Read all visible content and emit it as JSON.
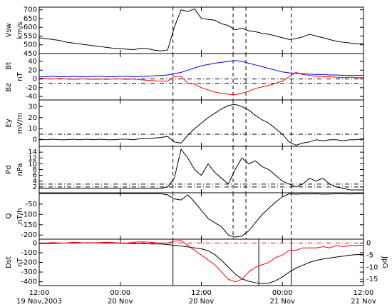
{
  "time_axis": {
    "x": [
      0,
      1,
      2,
      3,
      4,
      5,
      6,
      7,
      8,
      9,
      10,
      11,
      12,
      13,
      14,
      15,
      16,
      17,
      18,
      19,
      20,
      21,
      22,
      23,
      24,
      25,
      26,
      27,
      28,
      29,
      30,
      31,
      32,
      33,
      34,
      35,
      36,
      37,
      38,
      39,
      40,
      41,
      42,
      43,
      44,
      45,
      46,
      47,
      48
    ],
    "xlim": [
      0,
      48
    ],
    "xticks": [
      {
        "value": 0,
        "label": "12:00"
      },
      {
        "value": 12,
        "label": "00:00"
      },
      {
        "value": 24,
        "label": "12:00"
      },
      {
        "value": 36,
        "label": "00:00"
      },
      {
        "value": 48,
        "label": "12:00"
      }
    ],
    "xtick_dates": [
      "19 Nov,2003",
      "20 Nov",
      "20 Nov",
      "21 Nov",
      "21 Nov"
    ],
    "event_lines": [
      19.8,
      28.7,
      30.6,
      37.3
    ]
  },
  "chart_data": [
    {
      "type": "line",
      "ylabel": "Vsw",
      "yunit": "km/s",
      "ylim": [
        450,
        715
      ],
      "yticks": [
        450,
        500,
        550,
        600,
        650,
        700
      ],
      "series": [
        {
          "color": "#000000",
          "values": [
            540,
            535,
            530,
            525,
            515,
            510,
            505,
            500,
            495,
            490,
            485,
            480,
            478,
            475,
            472,
            480,
            478,
            470,
            465,
            470,
            600,
            700,
            690,
            705,
            650,
            645,
            640,
            620,
            610,
            585,
            595,
            580,
            575,
            565,
            560,
            550,
            540,
            530,
            535,
            545,
            560,
            550,
            540,
            530,
            520,
            515,
            510,
            505,
            505
          ]
        }
      ]
    },
    {
      "type": "line",
      "ylim": [
        -48,
        58
      ],
      "yticks": [
        -40,
        -20,
        0,
        20,
        40
      ],
      "yunit": "nT",
      "reference_lines": [
        0,
        -10
      ],
      "series": [
        {
          "name": "Bz",
          "color": "#ff0000",
          "values": [
            2,
            1,
            0,
            1,
            0,
            -1,
            0,
            0,
            -1,
            0,
            -1,
            0,
            0,
            -1,
            0,
            -2,
            -3,
            -4,
            -5,
            -5,
            5,
            6,
            -10,
            -12,
            -20,
            -25,
            -30,
            -33,
            -35,
            -36,
            -33,
            -28,
            -22,
            -18,
            -15,
            -10,
            -5,
            5,
            15,
            10,
            8,
            6,
            5,
            5,
            4,
            3,
            4,
            3,
            3
          ]
        },
        {
          "name": "Bt",
          "color": "#0000ff",
          "values": [
            5,
            5,
            6,
            5,
            5,
            6,
            5,
            5,
            6,
            6,
            5,
            5,
            6,
            6,
            5,
            6,
            6,
            7,
            8,
            9,
            12,
            15,
            20,
            25,
            30,
            33,
            36,
            38,
            40,
            42,
            40,
            36,
            32,
            28,
            24,
            20,
            16,
            14,
            13,
            12,
            11,
            10,
            10,
            9,
            9,
            8,
            8,
            8,
            8
          ]
        }
      ]
    },
    {
      "type": "line",
      "ylabel": "Ey",
      "yunit": "mV/m",
      "ylim": [
        -6,
        36
      ],
      "yticks": [
        0,
        10,
        20,
        30
      ],
      "reference_lines": [
        5
      ],
      "series": [
        {
          "color": "#000000",
          "values": [
            0.5,
            0,
            0.5,
            0,
            0,
            0.5,
            0,
            0.5,
            0,
            0.5,
            0,
            0,
            0.5,
            0.5,
            0,
            1,
            1,
            1.5,
            2,
            3,
            -2,
            -3,
            4,
            10,
            15,
            20,
            24,
            28,
            31,
            32,
            30,
            27,
            22,
            18,
            15,
            10,
            5,
            -2,
            -5,
            -3,
            -2,
            0,
            -1,
            0,
            0,
            -1,
            0,
            0,
            1
          ]
        }
      ]
    },
    {
      "type": "line",
      "ylabel": "Pd",
      "yunit": "nPa",
      "ylim": [
        0,
        16
      ],
      "yticks": [
        2,
        4,
        6,
        8,
        10,
        12,
        14
      ],
      "reference_lines": [
        2,
        3
      ],
      "series": [
        {
          "color": "#000000",
          "values": [
            1.5,
            1.5,
            1.5,
            1.5,
            1.5,
            1.5,
            1.5,
            1.5,
            1.5,
            1.5,
            1.5,
            1.5,
            1.5,
            1.5,
            1.5,
            1.5,
            1.5,
            1.5,
            1.5,
            2,
            5,
            15,
            12,
            8,
            6,
            10,
            7,
            5,
            3,
            8,
            12,
            10,
            11,
            9,
            8,
            6,
            4,
            3,
            2,
            3,
            5,
            4,
            5,
            3,
            2,
            1.5,
            1,
            1,
            1
          ]
        }
      ]
    },
    {
      "type": "line",
      "ylabel": "Q",
      "yunit": "nT/h",
      "ylim": [
        -220,
        5
      ],
      "yticks": [
        -200,
        -150,
        -100,
        -50
      ],
      "series": [
        {
          "color": "#000000",
          "values": [
            0,
            0,
            0,
            0,
            0,
            0,
            0,
            0,
            0,
            0,
            0,
            0,
            0,
            0,
            0,
            0,
            0,
            0,
            0,
            -5,
            -25,
            -30,
            -5,
            -40,
            -80,
            -120,
            -140,
            -160,
            -200,
            -210,
            -205,
            -180,
            -140,
            -100,
            -70,
            -40,
            -15,
            0,
            -2,
            0,
            -1,
            0,
            -2,
            -1,
            0,
            0,
            -1,
            0,
            0
          ]
        }
      ]
    },
    {
      "type": "line",
      "ylabel": "Dst",
      "yunit": "nT",
      "ylim": [
        -440,
        40
      ],
      "yticks": [
        -400,
        -300,
        -200,
        -100,
        0
      ],
      "y2label": "JpG",
      "y2lim": [
        -17.6,
        1.6
      ],
      "y2ticks": [
        -15,
        -10,
        -5,
        0
      ],
      "y2color": "#ff0000",
      "y2_reference_lines": [
        0
      ],
      "event_lines_solid": [
        19.8,
        32.5,
        37.3
      ],
      "series": [
        {
          "color": "#000000",
          "values": [
            -5,
            -5,
            -3,
            -2,
            0,
            0,
            0,
            2,
            2,
            0,
            0,
            0,
            -2,
            -3,
            -5,
            -5,
            -8,
            -10,
            -10,
            -15,
            -25,
            -30,
            -40,
            -50,
            -60,
            -80,
            -120,
            -180,
            -250,
            -320,
            -370,
            -395,
            -410,
            -420,
            -415,
            -390,
            -350,
            -300,
            -260,
            -230,
            -200,
            -180,
            -165,
            -155,
            -145,
            -135,
            -125,
            -120,
            -118
          ]
        },
        {
          "color": "#ff0000",
          "axis": "y2",
          "values": [
            0,
            0,
            0.2,
            0,
            0,
            0.3,
            0.2,
            0,
            0,
            0.2,
            0.3,
            0.2,
            0,
            0,
            0.3,
            0.5,
            0.4,
            0.2,
            0,
            0,
            0.8,
            1,
            -1,
            -3,
            -5,
            -7,
            -9,
            -12,
            -15,
            -16,
            -15,
            -12,
            -10,
            -9,
            -8,
            -6,
            -5,
            -3,
            -3,
            -2,
            -2,
            -2,
            -1.5,
            -2,
            -1,
            -1.5,
            -1,
            -1,
            -1
          ]
        }
      ]
    }
  ]
}
